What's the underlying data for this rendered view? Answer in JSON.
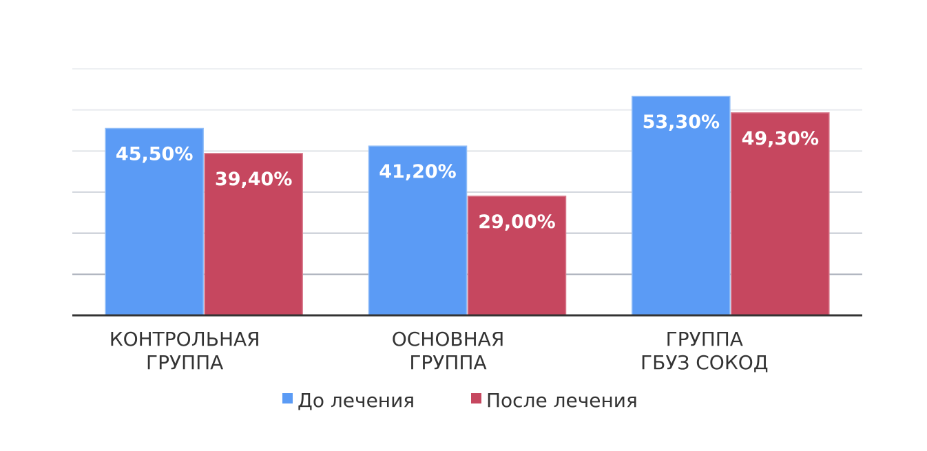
{
  "chart_data": {
    "type": "bar",
    "categories": [
      [
        "КОНТРОЛЬНАЯ",
        "ГРУППА"
      ],
      [
        "ОСНОВНАЯ",
        "ГРУППА"
      ],
      [
        "ГРУППА",
        "ГБУЗ СОКОД"
      ]
    ],
    "series": [
      {
        "name": "До лечения",
        "color": "#5b9bf5",
        "values": [
          45.5,
          41.2,
          53.3
        ],
        "labels": [
          "45,50%",
          "41,20%",
          "53,30%"
        ]
      },
      {
        "name": "После лечения",
        "color": "#c6475f",
        "values": [
          39.4,
          29.0,
          49.3
        ],
        "labels": [
          "39,40%",
          "29,00%",
          "49,30%"
        ]
      }
    ],
    "ylim": [
      0,
      60
    ],
    "grid": true,
    "legend": "bottom"
  }
}
